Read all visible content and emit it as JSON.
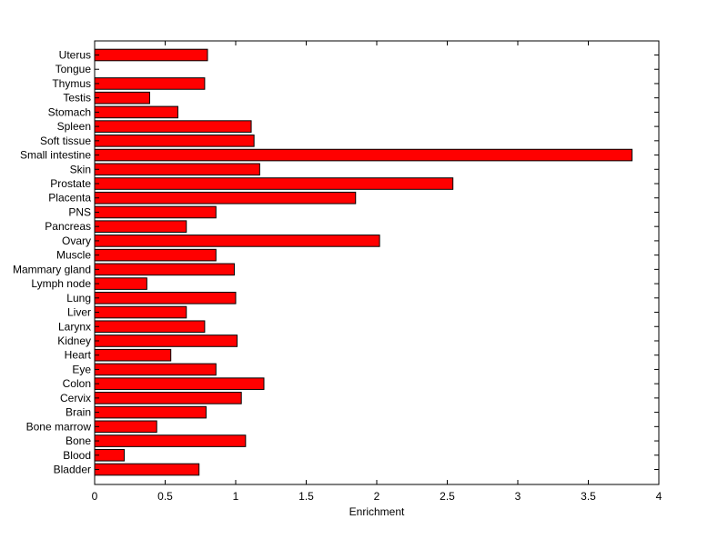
{
  "chart_data": {
    "type": "bar",
    "orientation": "horizontal",
    "title": "",
    "xlabel": "Enrichment",
    "ylabel": "",
    "xlim": [
      0,
      4
    ],
    "xticks": [
      0,
      0.5,
      1,
      1.5,
      2,
      2.5,
      3,
      3.5,
      4
    ],
    "xtick_labels": [
      "0",
      "0.5",
      "1",
      "1.5",
      "2",
      "2.5",
      "3",
      "3.5",
      "4"
    ],
    "categories": [
      "Uterus",
      "Tongue",
      "Thymus",
      "Testis",
      "Stomach",
      "Spleen",
      "Soft tissue",
      "Small intestine",
      "Skin",
      "Prostate",
      "Placenta",
      "PNS",
      "Pancreas",
      "Ovary",
      "Muscle",
      "Mammary gland",
      "Lymph node",
      "Lung",
      "Liver",
      "Larynx",
      "Kidney",
      "Heart",
      "Eye",
      "Colon",
      "Cervix",
      "Brain",
      "Bone marrow",
      "Bone",
      "Blood",
      "Bladder"
    ],
    "values": [
      0.8,
      0.0,
      0.78,
      0.39,
      0.59,
      1.11,
      1.13,
      3.81,
      1.17,
      2.54,
      1.85,
      0.86,
      0.65,
      2.02,
      0.86,
      0.99,
      0.37,
      1.0,
      0.65,
      0.78,
      1.01,
      0.54,
      0.86,
      1.2,
      1.04,
      0.79,
      0.44,
      1.07,
      0.21,
      0.74
    ],
    "bar_color": "#ff0000",
    "grid": false,
    "legend": "none"
  }
}
